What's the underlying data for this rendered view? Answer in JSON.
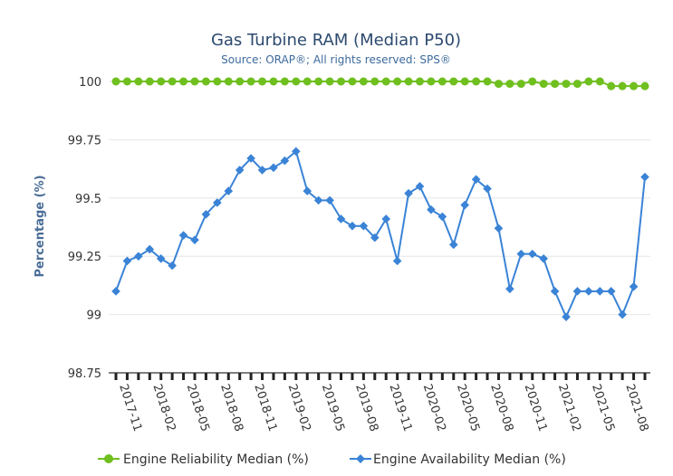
{
  "chart_data": {
    "type": "line",
    "title": "Gas Turbine RAM (Median P50)",
    "subtitle": "Source: ORAP®; All rights reserved: SPS®",
    "ylabel": "Percentage (%)",
    "xlabel": "",
    "ylim": [
      98.75,
      100
    ],
    "yticks": [
      "98.75",
      "99",
      "99.25",
      "99.5",
      "99.75",
      "100"
    ],
    "x": [
      "2017-11",
      "2017-12",
      "2018-01",
      "2018-02",
      "2018-03",
      "2018-04",
      "2018-05",
      "2018-06",
      "2018-07",
      "2018-08",
      "2018-09",
      "2018-10",
      "2018-11",
      "2018-12",
      "2019-01",
      "2019-02",
      "2019-03",
      "2019-04",
      "2019-05",
      "2019-06",
      "2019-07",
      "2019-08",
      "2019-09",
      "2019-10",
      "2019-11",
      "2019-12",
      "2020-01",
      "2020-02",
      "2020-03",
      "2020-04",
      "2020-05",
      "2020-06",
      "2020-07",
      "2020-08",
      "2020-09",
      "2020-10",
      "2020-11",
      "2020-12",
      "2021-01",
      "2021-02",
      "2021-03",
      "2021-04",
      "2021-05",
      "2021-06",
      "2021-07",
      "2021-08",
      "2021-09",
      "2021-10"
    ],
    "xtick_labels": [
      "2017-11",
      "2018-02",
      "2018-05",
      "2018-08",
      "2018-11",
      "2019-02",
      "2019-05",
      "2019-08",
      "2019-11",
      "2020-02",
      "2020-05",
      "2020-08",
      "2020-11",
      "2021-02",
      "2021-05",
      "2021-08"
    ],
    "grid": true,
    "legend_position": "bottom",
    "series": [
      {
        "name": "Engine Reliability Median (%)",
        "color": "#6fbf1f",
        "marker": "circle",
        "values": [
          100,
          100,
          100,
          100,
          100,
          100,
          100,
          100,
          100,
          100,
          100,
          100,
          100,
          100,
          100,
          100,
          100,
          100,
          100,
          100,
          100,
          100,
          100,
          100,
          100,
          100,
          100,
          100,
          100,
          100,
          100,
          100,
          100,
          100,
          99.99,
          99.99,
          99.99,
          100,
          99.99,
          99.99,
          99.99,
          99.99,
          100,
          100,
          99.98,
          99.98,
          99.98,
          99.98
        ]
      },
      {
        "name": "Engine Availability Median (%)",
        "color": "#3a83d6",
        "marker": "diamond",
        "values": [
          99.1,
          99.23,
          99.25,
          99.28,
          99.24,
          99.21,
          99.34,
          99.32,
          99.43,
          99.48,
          99.53,
          99.62,
          99.67,
          99.62,
          99.63,
          99.66,
          99.7,
          99.53,
          99.49,
          99.49,
          99.41,
          99.38,
          99.38,
          99.33,
          99.41,
          99.23,
          99.52,
          99.55,
          99.45,
          99.42,
          99.3,
          99.47,
          99.58,
          99.54,
          99.37,
          99.11,
          99.26,
          99.26,
          99.24,
          99.1,
          98.99,
          99.1,
          99.1,
          99.1,
          99.1,
          99.0,
          99.12,
          99.59
        ]
      }
    ]
  }
}
